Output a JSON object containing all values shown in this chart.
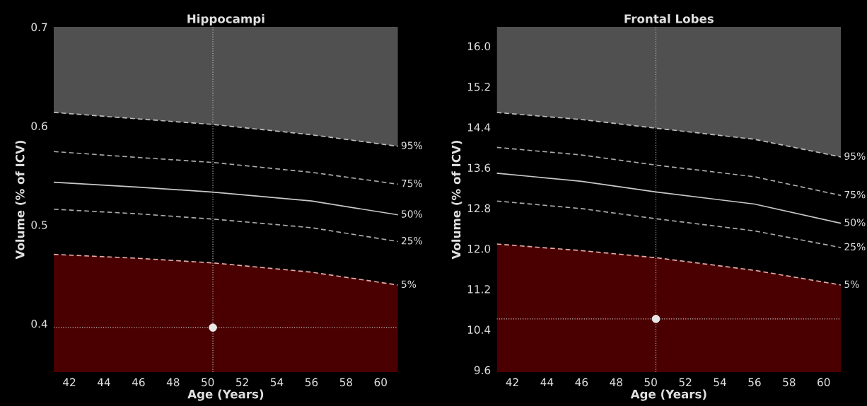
{
  "chart_data": [
    {
      "type": "line",
      "title": "Hippocampi",
      "xlabel": "Age (Years)",
      "ylabel": "Volume (% of ICV)",
      "x": [
        41.1,
        46,
        50.3,
        56,
        61
      ],
      "xlim": [
        41.1,
        61
      ],
      "xticks": [
        42,
        44,
        46,
        48,
        50,
        52,
        54,
        56,
        58,
        60
      ],
      "ylim": [
        0.351,
        0.7
      ],
      "yticks": [
        0.4,
        0.5,
        0.6,
        0.7
      ],
      "grid": false,
      "legend": false,
      "series": [
        {
          "name": "95%",
          "color": "#bbbbbb",
          "line_style": "dashed",
          "values": [
            0.6136,
            0.607,
            0.6014,
            0.591,
            0.5793
          ],
          "lower": [
            0.6136,
            0.607,
            0.6014,
            0.591,
            0.5793
          ],
          "upper": [
            0.7,
            0.7,
            0.7,
            0.7,
            0.7
          ]
        },
        {
          "name": "75%",
          "color": "#aaaaaa",
          "line_style": "dashed",
          "values": [
            0.574,
            0.568,
            0.563,
            0.553,
            0.541
          ]
        },
        {
          "name": "50%",
          "color": "#c8c8c8",
          "line_style": "solid",
          "values": [
            0.543,
            0.538,
            0.533,
            0.524,
            0.51
          ]
        },
        {
          "name": "25%",
          "color": "#aaaaaa",
          "line_style": "dashed",
          "values": [
            0.5157,
            0.511,
            0.5057,
            0.497,
            0.483
          ]
        },
        {
          "name": "5%",
          "type": "area",
          "color": "#e8a8a8",
          "line_style": "dashed",
          "values": [
            0.47,
            0.466,
            0.4614,
            0.452,
            0.439
          ]
        },
        {
          "type": "scatter",
          "color": "#e6e6e6",
          "marker": "circle",
          "x": [
            50.3
          ],
          "values": [
            0.396
          ]
        }
      ],
      "ref_lines": [
        {
          "axis": "x",
          "value": 50.3,
          "color": "#cccccc",
          "line_style": "dotted"
        },
        {
          "axis": "y",
          "value": 0.396,
          "color": "#cccccc",
          "line_style": "dotted"
        }
      ]
    },
    {
      "type": "line",
      "title": "Frontal Lobes",
      "xlabel": "Age (Years)",
      "ylabel": "Volume (% of ICV)",
      "x": [
        41.1,
        46,
        50.3,
        56,
        61
      ],
      "xlim": [
        41.1,
        61
      ],
      "xticks": [
        42,
        44,
        46,
        48,
        50,
        52,
        54,
        56,
        58,
        60
      ],
      "ylim": [
        9.56,
        16.38
      ],
      "yticks": [
        {
          "value": 9.6,
          "label": "9.6"
        },
        {
          "value": 10.4,
          "label": "10.4"
        },
        {
          "value": 11.2,
          "label": "11.2"
        },
        {
          "value": 12.0,
          "label": "12.0"
        },
        {
          "value": 12.8,
          "label": "12.8"
        },
        {
          "value": 13.6,
          "label": "13.6"
        },
        {
          "value": 14.4,
          "label": "14.4"
        },
        {
          "value": 15.2,
          "label": "15.2"
        },
        {
          "value": 16.0,
          "label": "16.0"
        }
      ],
      "grid": false,
      "legend": false,
      "series": [
        {
          "name": "95%",
          "color": "#bbbbbb",
          "line_style": "dashed",
          "values": [
            14.69,
            14.55,
            14.38,
            14.16,
            13.81
          ],
          "lower": [
            14.69,
            14.55,
            14.38,
            14.16,
            13.81
          ],
          "upper": [
            16.38,
            16.38,
            16.38,
            16.38,
            16.38
          ]
        },
        {
          "name": "75%",
          "color": "#aaaaaa",
          "line_style": "dashed",
          "values": [
            14.0,
            13.85,
            13.65,
            13.42,
            13.05
          ]
        },
        {
          "name": "50%",
          "color": "#c8c8c8",
          "line_style": "solid",
          "values": [
            13.49,
            13.33,
            13.12,
            12.88,
            12.5
          ]
        },
        {
          "name": "25%",
          "color": "#aaaaaa",
          "line_style": "dashed",
          "values": [
            12.94,
            12.79,
            12.59,
            12.35,
            12.02
          ]
        },
        {
          "name": "5%",
          "type": "area",
          "color": "#e8a8a8",
          "line_style": "dashed",
          "values": [
            12.09,
            11.96,
            11.82,
            11.57,
            11.28
          ]
        },
        {
          "type": "scatter",
          "color": "#e6e6e6",
          "marker": "circle",
          "x": [
            50.3
          ],
          "values": [
            10.61
          ]
        }
      ],
      "ref_lines": [
        {
          "axis": "x",
          "value": 50.3,
          "color": "#cccccc",
          "line_style": "dotted"
        },
        {
          "axis": "y",
          "value": 10.61,
          "color": "#cccccc",
          "line_style": "dotted"
        }
      ]
    }
  ]
}
